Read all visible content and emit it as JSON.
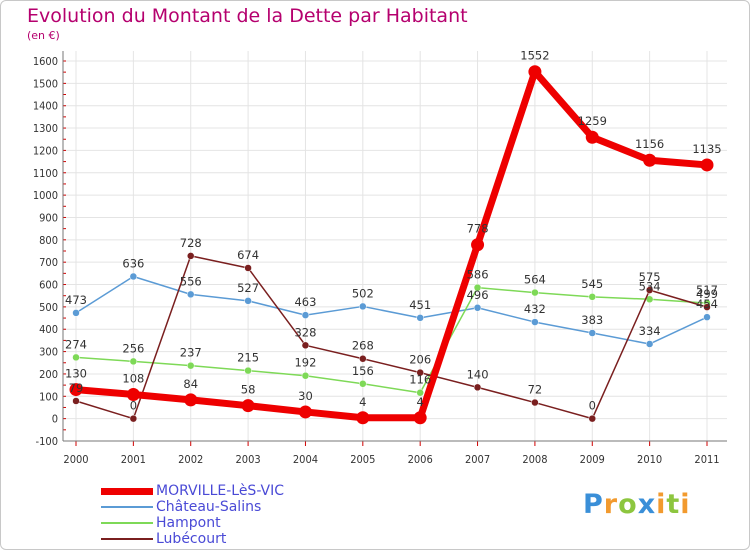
{
  "chart_data": {
    "type": "line",
    "title": "Evolution du Montant de la Dette par Habitant",
    "subtitle": "(en €)",
    "categories": [
      "2000",
      "2001",
      "2002",
      "2003",
      "2004",
      "2005",
      "2006",
      "2007",
      "2008",
      "2009",
      "2010",
      "2011"
    ],
    "ylim": [
      -100,
      1600
    ],
    "yticks": [
      -100,
      0,
      100,
      200,
      300,
      400,
      500,
      600,
      700,
      800,
      900,
      1000,
      1100,
      1200,
      1300,
      1400,
      1500,
      1600
    ],
    "grid": true,
    "legend_position": "bottom-left",
    "series": [
      {
        "name": "MORVILLE-LèS-VIC",
        "color": "#ee0000",
        "values": [
          130,
          108,
          84,
          58,
          30,
          4,
          4,
          778,
          1552,
          1259,
          1156,
          1135
        ],
        "labels": [
          "130",
          "108",
          "84",
          "58",
          "30",
          "4",
          "4",
          "778",
          "1552",
          "1259",
          "1156",
          "1135"
        ]
      },
      {
        "name": "Château-Salins",
        "color": "#5b9bd5",
        "values": [
          473,
          636,
          556,
          527,
          463,
          502,
          451,
          496,
          432,
          383,
          334,
          454
        ],
        "labels": [
          "473",
          "636",
          "556",
          "527",
          "463",
          "502",
          "451",
          "496",
          "432",
          "383",
          "334",
          "454"
        ]
      },
      {
        "name": "Hampont",
        "color": "#7ed957",
        "values": [
          274,
          256,
          237,
          215,
          192,
          156,
          116,
          586,
          564,
          545,
          534,
          517
        ],
        "labels": [
          "274",
          "256",
          "237",
          "215",
          "192",
          "156",
          "116",
          "586",
          "564",
          "545",
          "534",
          "517"
        ]
      },
      {
        "name": "Lubécourt",
        "color": "#7a1f1f",
        "values": [
          79,
          0,
          728,
          674,
          328,
          268,
          206,
          140,
          72,
          0,
          575,
          499
        ],
        "labels": [
          "79",
          "0",
          "728",
          "674",
          "328",
          "268",
          "206",
          "140",
          "72",
          "0",
          "575",
          "499"
        ]
      }
    ]
  },
  "logo": {
    "letters": [
      "P",
      "r",
      "o",
      "x",
      "i",
      "t",
      "i"
    ],
    "colors": [
      "#3a8fd8",
      "#f29a2e",
      "#8dc63f",
      "#3a8fd8",
      "#f29a2e",
      "#8dc63f",
      "#f29a2e"
    ]
  }
}
